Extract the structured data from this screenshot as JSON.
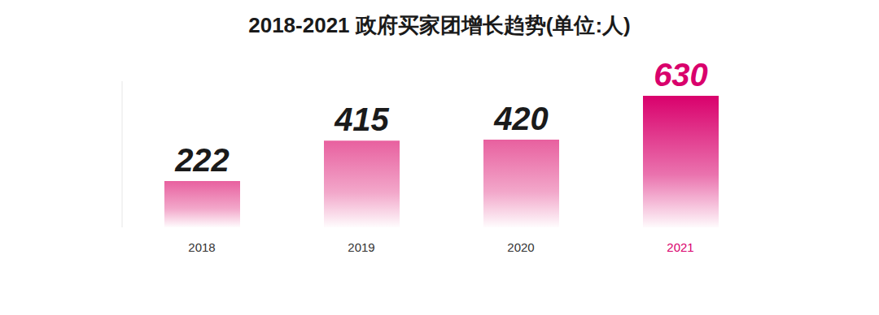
{
  "chart_data": {
    "type": "bar",
    "title": "2018-2021 政府买家团增长趋势(单位:人)",
    "categories": [
      "2018",
      "2019",
      "2020",
      "2021"
    ],
    "values": [
      222,
      415,
      420,
      630
    ],
    "colors": [
      "#e8609f",
      "#e8609f",
      "#e8609f",
      "#d9006c"
    ],
    "ylim": [
      0,
      700
    ],
    "data_labels": true,
    "tick_labels": "x",
    "grid": false
  }
}
